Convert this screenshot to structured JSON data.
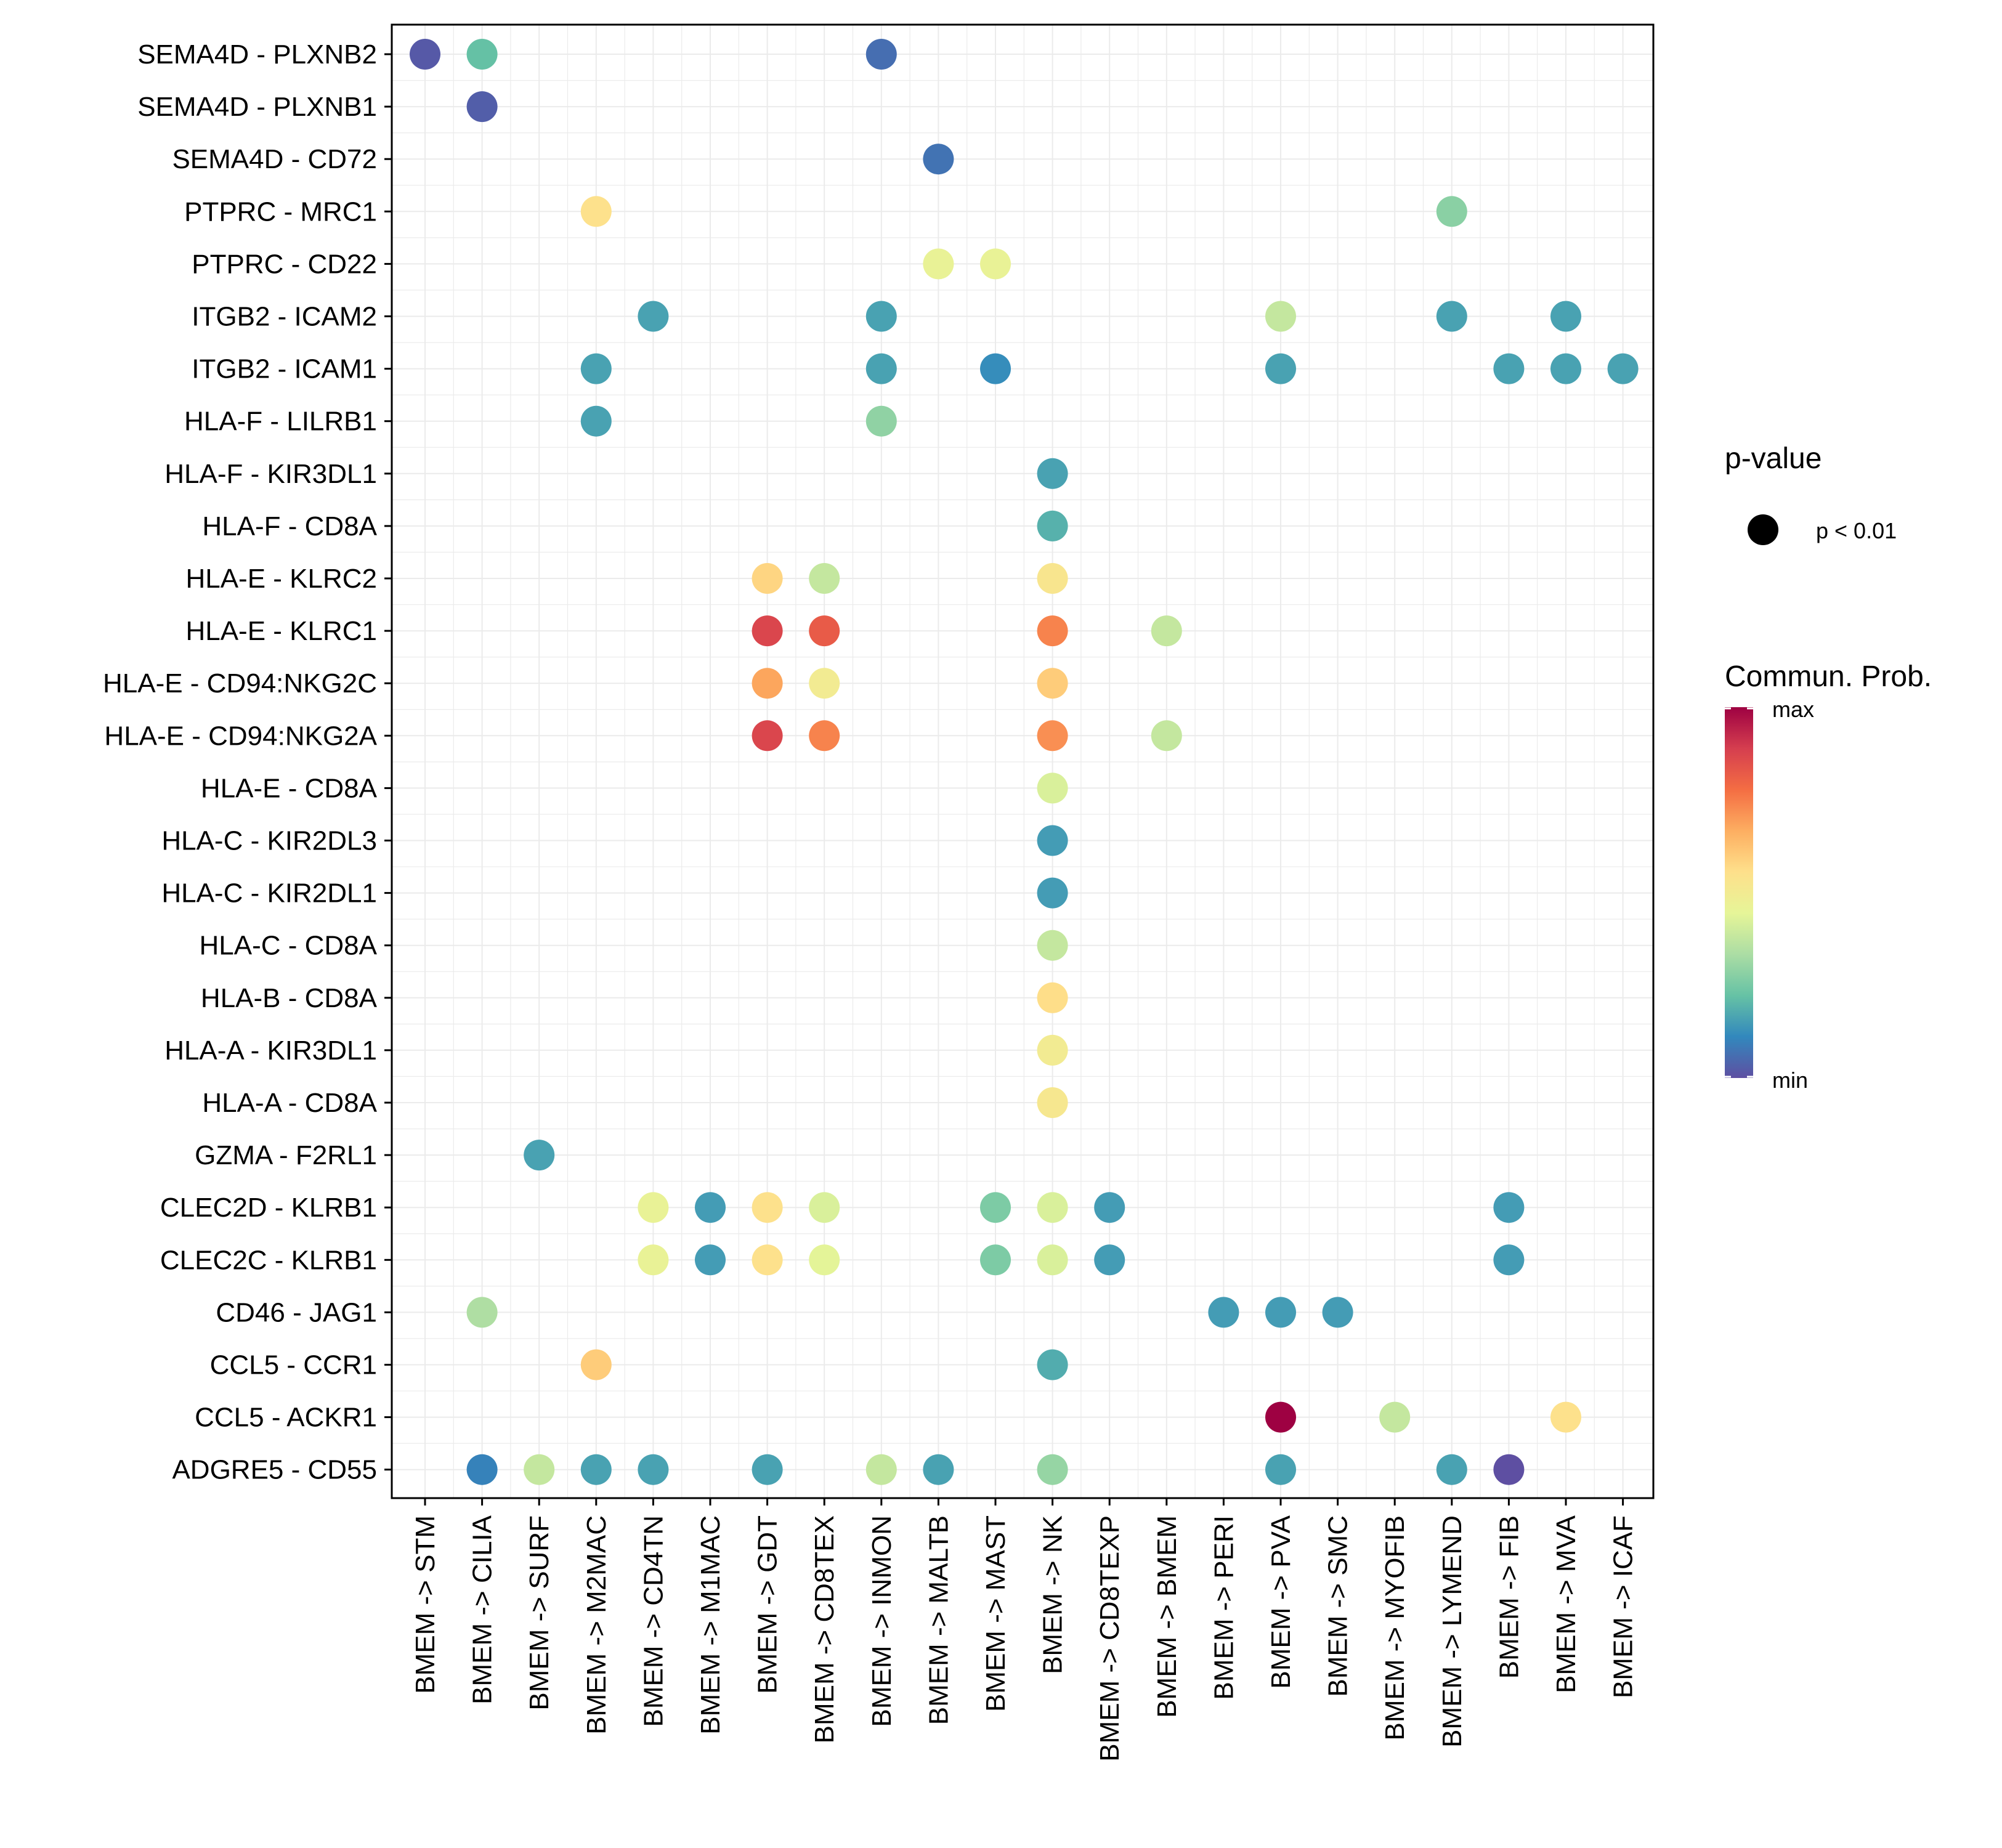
{
  "chart_data": {
    "type": "dot",
    "title": "",
    "xlabel": "",
    "ylabel": "",
    "grid": true,
    "x_categories": [
      "BMEM -> STM",
      "BMEM -> CILIA",
      "BMEM -> SURF",
      "BMEM -> M2MAC",
      "BMEM -> CD4TN",
      "BMEM -> M1MAC",
      "BMEM -> GDT",
      "BMEM -> CD8TEX",
      "BMEM -> INMON",
      "BMEM -> MALTB",
      "BMEM -> MAST",
      "BMEM -> NK",
      "BMEM -> CD8TEXP",
      "BMEM -> BMEM",
      "BMEM -> PERI",
      "BMEM -> PVA",
      "BMEM -> SMC",
      "BMEM -> MYOFIB",
      "BMEM -> LYMEND",
      "BMEM -> FIB",
      "BMEM -> MVA",
      "BMEM -> ICAF"
    ],
    "y_categories": [
      "SEMA4D - PLXNB2",
      "SEMA4D - PLXNB1",
      "SEMA4D - CD72",
      "PTPRC - MRC1",
      "PTPRC - CD22",
      "ITGB2 - ICAM2",
      "ITGB2 - ICAM1",
      "HLA-F - LILRB1",
      "HLA-F - KIR3DL1",
      "HLA-F - CD8A",
      "HLA-E - KLRC2",
      "HLA-E - KLRC1",
      "HLA-E - CD94:NKG2C",
      "HLA-E - CD94:NKG2A",
      "HLA-E - CD8A",
      "HLA-C - KIR2DL3",
      "HLA-C - KIR2DL1",
      "HLA-C - CD8A",
      "HLA-B - CD8A",
      "HLA-A - KIR3DL1",
      "HLA-A - CD8A",
      "GZMA - F2RL1",
      "CLEC2D - KLRB1",
      "CLEC2C - KLRB1",
      "CD46 - JAG1",
      "CCL5 - CCR1",
      "CCL5 - ACKR1",
      "ADGRE5 - CD55"
    ],
    "points": [
      {
        "x": "BMEM -> STM",
        "y": "SEMA4D - PLXNB2",
        "prob": 0.02
      },
      {
        "x": "BMEM -> CILIA",
        "y": "SEMA4D - PLXNB2",
        "prob": 0.22
      },
      {
        "x": "BMEM -> INMON",
        "y": "SEMA4D - PLXNB2",
        "prob": 0.06
      },
      {
        "x": "BMEM -> CILIA",
        "y": "SEMA4D - PLXNB1",
        "prob": 0.03
      },
      {
        "x": "BMEM -> MALTB",
        "y": "SEMA4D - CD72",
        "prob": 0.07
      },
      {
        "x": "BMEM -> M2MAC",
        "y": "PTPRC - MRC1",
        "prob": 0.55
      },
      {
        "x": "BMEM -> LYMEND",
        "y": "PTPRC - MRC1",
        "prob": 0.28
      },
      {
        "x": "BMEM -> MALTB",
        "y": "PTPRC - CD22",
        "prob": 0.46
      },
      {
        "x": "BMEM -> MAST",
        "y": "PTPRC - CD22",
        "prob": 0.46
      },
      {
        "x": "BMEM -> CD4TN",
        "y": "ITGB2 - ICAM2",
        "prob": 0.16
      },
      {
        "x": "BMEM -> INMON",
        "y": "ITGB2 - ICAM2",
        "prob": 0.16
      },
      {
        "x": "BMEM -> PVA",
        "y": "ITGB2 - ICAM2",
        "prob": 0.38
      },
      {
        "x": "BMEM -> LYMEND",
        "y": "ITGB2 - ICAM2",
        "prob": 0.16
      },
      {
        "x": "BMEM -> MVA",
        "y": "ITGB2 - ICAM2",
        "prob": 0.16
      },
      {
        "x": "BMEM -> M2MAC",
        "y": "ITGB2 - ICAM1",
        "prob": 0.16
      },
      {
        "x": "BMEM -> INMON",
        "y": "ITGB2 - ICAM1",
        "prob": 0.16
      },
      {
        "x": "BMEM -> MAST",
        "y": "ITGB2 - ICAM1",
        "prob": 0.12
      },
      {
        "x": "BMEM -> PVA",
        "y": "ITGB2 - ICAM1",
        "prob": 0.16
      },
      {
        "x": "BMEM -> FIB",
        "y": "ITGB2 - ICAM1",
        "prob": 0.16
      },
      {
        "x": "BMEM -> MVA",
        "y": "ITGB2 - ICAM1",
        "prob": 0.16
      },
      {
        "x": "BMEM -> ICAF",
        "y": "ITGB2 - ICAM1",
        "prob": 0.16
      },
      {
        "x": "BMEM -> M2MAC",
        "y": "HLA-F - LILRB1",
        "prob": 0.16
      },
      {
        "x": "BMEM -> INMON",
        "y": "HLA-F - LILRB1",
        "prob": 0.29
      },
      {
        "x": "BMEM -> NK",
        "y": "HLA-F - KIR3DL1",
        "prob": 0.16
      },
      {
        "x": "BMEM -> NK",
        "y": "HLA-F - CD8A",
        "prob": 0.19
      },
      {
        "x": "BMEM -> GDT",
        "y": "HLA-E - KLRC2",
        "prob": 0.58
      },
      {
        "x": "BMEM -> CD8TEX",
        "y": "HLA-E - KLRC2",
        "prob": 0.38
      },
      {
        "x": "BMEM -> NK",
        "y": "HLA-E - KLRC2",
        "prob": 0.53
      },
      {
        "x": "BMEM -> GDT",
        "y": "HLA-E - KLRC1",
        "prob": 0.87
      },
      {
        "x": "BMEM -> CD8TEX",
        "y": "HLA-E - KLRC1",
        "prob": 0.82
      },
      {
        "x": "BMEM -> NK",
        "y": "HLA-E - KLRC1",
        "prob": 0.74
      },
      {
        "x": "BMEM -> BMEM",
        "y": "HLA-E - KLRC1",
        "prob": 0.38
      },
      {
        "x": "BMEM -> GDT",
        "y": "HLA-E - CD94:NKG2C",
        "prob": 0.68
      },
      {
        "x": "BMEM -> CD8TEX",
        "y": "HLA-E - CD94:NKG2C",
        "prob": 0.5
      },
      {
        "x": "BMEM -> NK",
        "y": "HLA-E - CD94:NKG2C",
        "prob": 0.6
      },
      {
        "x": "BMEM -> GDT",
        "y": "HLA-E - CD94:NKG2A",
        "prob": 0.87
      },
      {
        "x": "BMEM -> CD8TEX",
        "y": "HLA-E - CD94:NKG2A",
        "prob": 0.74
      },
      {
        "x": "BMEM -> NK",
        "y": "HLA-E - CD94:NKG2A",
        "prob": 0.72
      },
      {
        "x": "BMEM -> BMEM",
        "y": "HLA-E - CD94:NKG2A",
        "prob": 0.38
      },
      {
        "x": "BMEM -> NK",
        "y": "HLA-E - CD8A",
        "prob": 0.42
      },
      {
        "x": "BMEM -> NK",
        "y": "HLA-C - KIR2DL3",
        "prob": 0.15
      },
      {
        "x": "BMEM -> NK",
        "y": "HLA-C - KIR2DL1",
        "prob": 0.15
      },
      {
        "x": "BMEM -> NK",
        "y": "HLA-C - CD8A",
        "prob": 0.38
      },
      {
        "x": "BMEM -> NK",
        "y": "HLA-B - CD8A",
        "prob": 0.56
      },
      {
        "x": "BMEM -> NK",
        "y": "HLA-A - KIR3DL1",
        "prob": 0.5
      },
      {
        "x": "BMEM -> NK",
        "y": "HLA-A - CD8A",
        "prob": 0.52
      },
      {
        "x": "BMEM -> SURF",
        "y": "GZMA - F2RL1",
        "prob": 0.16
      },
      {
        "x": "BMEM -> CD4TN",
        "y": "CLEC2D - KLRB1",
        "prob": 0.46
      },
      {
        "x": "BMEM -> M1MAC",
        "y": "CLEC2D - KLRB1",
        "prob": 0.15
      },
      {
        "x": "BMEM -> GDT",
        "y": "CLEC2D - KLRB1",
        "prob": 0.55
      },
      {
        "x": "BMEM -> CD8TEX",
        "y": "CLEC2D - KLRB1",
        "prob": 0.42
      },
      {
        "x": "BMEM -> MAST",
        "y": "CLEC2D - KLRB1",
        "prob": 0.26
      },
      {
        "x": "BMEM -> NK",
        "y": "CLEC2D - KLRB1",
        "prob": 0.42
      },
      {
        "x": "BMEM -> CD8TEXP",
        "y": "CLEC2D - KLRB1",
        "prob": 0.15
      },
      {
        "x": "BMEM -> FIB",
        "y": "CLEC2D - KLRB1",
        "prob": 0.15
      },
      {
        "x": "BMEM -> CD4TN",
        "y": "CLEC2C - KLRB1",
        "prob": 0.46
      },
      {
        "x": "BMEM -> M1MAC",
        "y": "CLEC2C - KLRB1",
        "prob": 0.15
      },
      {
        "x": "BMEM -> GDT",
        "y": "CLEC2C - KLRB1",
        "prob": 0.55
      },
      {
        "x": "BMEM -> CD8TEX",
        "y": "CLEC2C - KLRB1",
        "prob": 0.44
      },
      {
        "x": "BMEM -> MAST",
        "y": "CLEC2C - KLRB1",
        "prob": 0.26
      },
      {
        "x": "BMEM -> NK",
        "y": "CLEC2C - KLRB1",
        "prob": 0.42
      },
      {
        "x": "BMEM -> CD8TEXP",
        "y": "CLEC2C - KLRB1",
        "prob": 0.15
      },
      {
        "x": "BMEM -> FIB",
        "y": "CLEC2C - KLRB1",
        "prob": 0.15
      },
      {
        "x": "BMEM -> CILIA",
        "y": "CD46 - JAG1",
        "prob": 0.34
      },
      {
        "x": "BMEM -> PERI",
        "y": "CD46 - JAG1",
        "prob": 0.15
      },
      {
        "x": "BMEM -> PVA",
        "y": "CD46 - JAG1",
        "prob": 0.15
      },
      {
        "x": "BMEM -> SMC",
        "y": "CD46 - JAG1",
        "prob": 0.15
      },
      {
        "x": "BMEM -> M2MAC",
        "y": "CCL5 - CCR1",
        "prob": 0.6
      },
      {
        "x": "BMEM -> NK",
        "y": "CCL5 - CCR1",
        "prob": 0.18
      },
      {
        "x": "BMEM -> PVA",
        "y": "CCL5 - ACKR1",
        "prob": 1.0
      },
      {
        "x": "BMEM -> MYOFIB",
        "y": "CCL5 - ACKR1",
        "prob": 0.38
      },
      {
        "x": "BMEM -> MVA",
        "y": "CCL5 - ACKR1",
        "prob": 0.55
      },
      {
        "x": "BMEM -> CILIA",
        "y": "ADGRE5 - CD55",
        "prob": 0.1
      },
      {
        "x": "BMEM -> SURF",
        "y": "ADGRE5 - CD55",
        "prob": 0.38
      },
      {
        "x": "BMEM -> M2MAC",
        "y": "ADGRE5 - CD55",
        "prob": 0.16
      },
      {
        "x": "BMEM -> CD4TN",
        "y": "ADGRE5 - CD55",
        "prob": 0.16
      },
      {
        "x": "BMEM -> GDT",
        "y": "ADGRE5 - CD55",
        "prob": 0.16
      },
      {
        "x": "BMEM -> INMON",
        "y": "ADGRE5 - CD55",
        "prob": 0.38
      },
      {
        "x": "BMEM -> MALTB",
        "y": "ADGRE5 - CD55",
        "prob": 0.16
      },
      {
        "x": "BMEM -> NK",
        "y": "ADGRE5 - CD55",
        "prob": 0.3
      },
      {
        "x": "BMEM -> PVA",
        "y": "ADGRE5 - CD55",
        "prob": 0.16
      },
      {
        "x": "BMEM -> LYMEND",
        "y": "ADGRE5 - CD55",
        "prob": 0.16
      },
      {
        "x": "BMEM -> FIB",
        "y": "ADGRE5 - CD55",
        "prob": 0.0
      }
    ],
    "legend": {
      "size_title": "p-value",
      "size_label": "p < 0.01",
      "color_title": "Commun. Prob.",
      "color_max": "max",
      "color_min": "min",
      "placement": "right"
    },
    "colors": {
      "palette": [
        "#5e4fa2",
        "#3288bd",
        "#66c2a5",
        "#abdda4",
        "#e6f598",
        "#fee08b",
        "#fdae61",
        "#f46d43",
        "#d53e4f",
        "#9e0142"
      ],
      "panel_border": "#000000",
      "grid_line": "#ebebeb",
      "legend_dot": "#000000"
    }
  }
}
